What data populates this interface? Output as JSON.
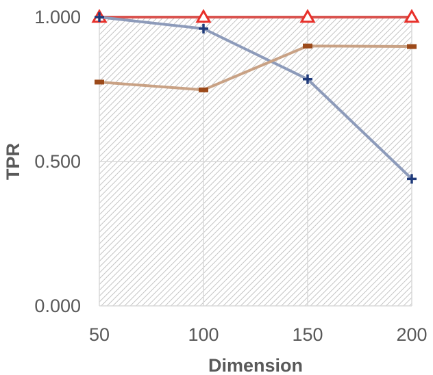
{
  "chart_data": {
    "type": "line",
    "title": "",
    "xlabel": "Dimension",
    "ylabel": "TPR",
    "x": [
      50,
      100,
      150,
      200
    ],
    "x_tick_labels": [
      "50",
      "100",
      "150",
      "200"
    ],
    "y_tick_labels": [
      "0.000",
      "0.500",
      "1.000"
    ],
    "y_ticks": [
      0,
      0.5,
      1
    ],
    "ylim": [
      0,
      1
    ],
    "grid": true,
    "legend": "none",
    "background": "hatched",
    "series": [
      {
        "marker": "triangle",
        "color": "#e8302a",
        "line_color": "#d9534f",
        "values": [
          1.0,
          1.0,
          1.0,
          1.0
        ]
      },
      {
        "marker": "plus",
        "color": "#1f3a7a",
        "line_color": "#8d9bba",
        "values": [
          1.0,
          0.96,
          0.785,
          0.44
        ]
      },
      {
        "marker": "dash",
        "color": "#9c4a1a",
        "line_color": "#c9a285",
        "values": [
          0.775,
          0.748,
          0.9,
          0.898
        ]
      }
    ]
  }
}
